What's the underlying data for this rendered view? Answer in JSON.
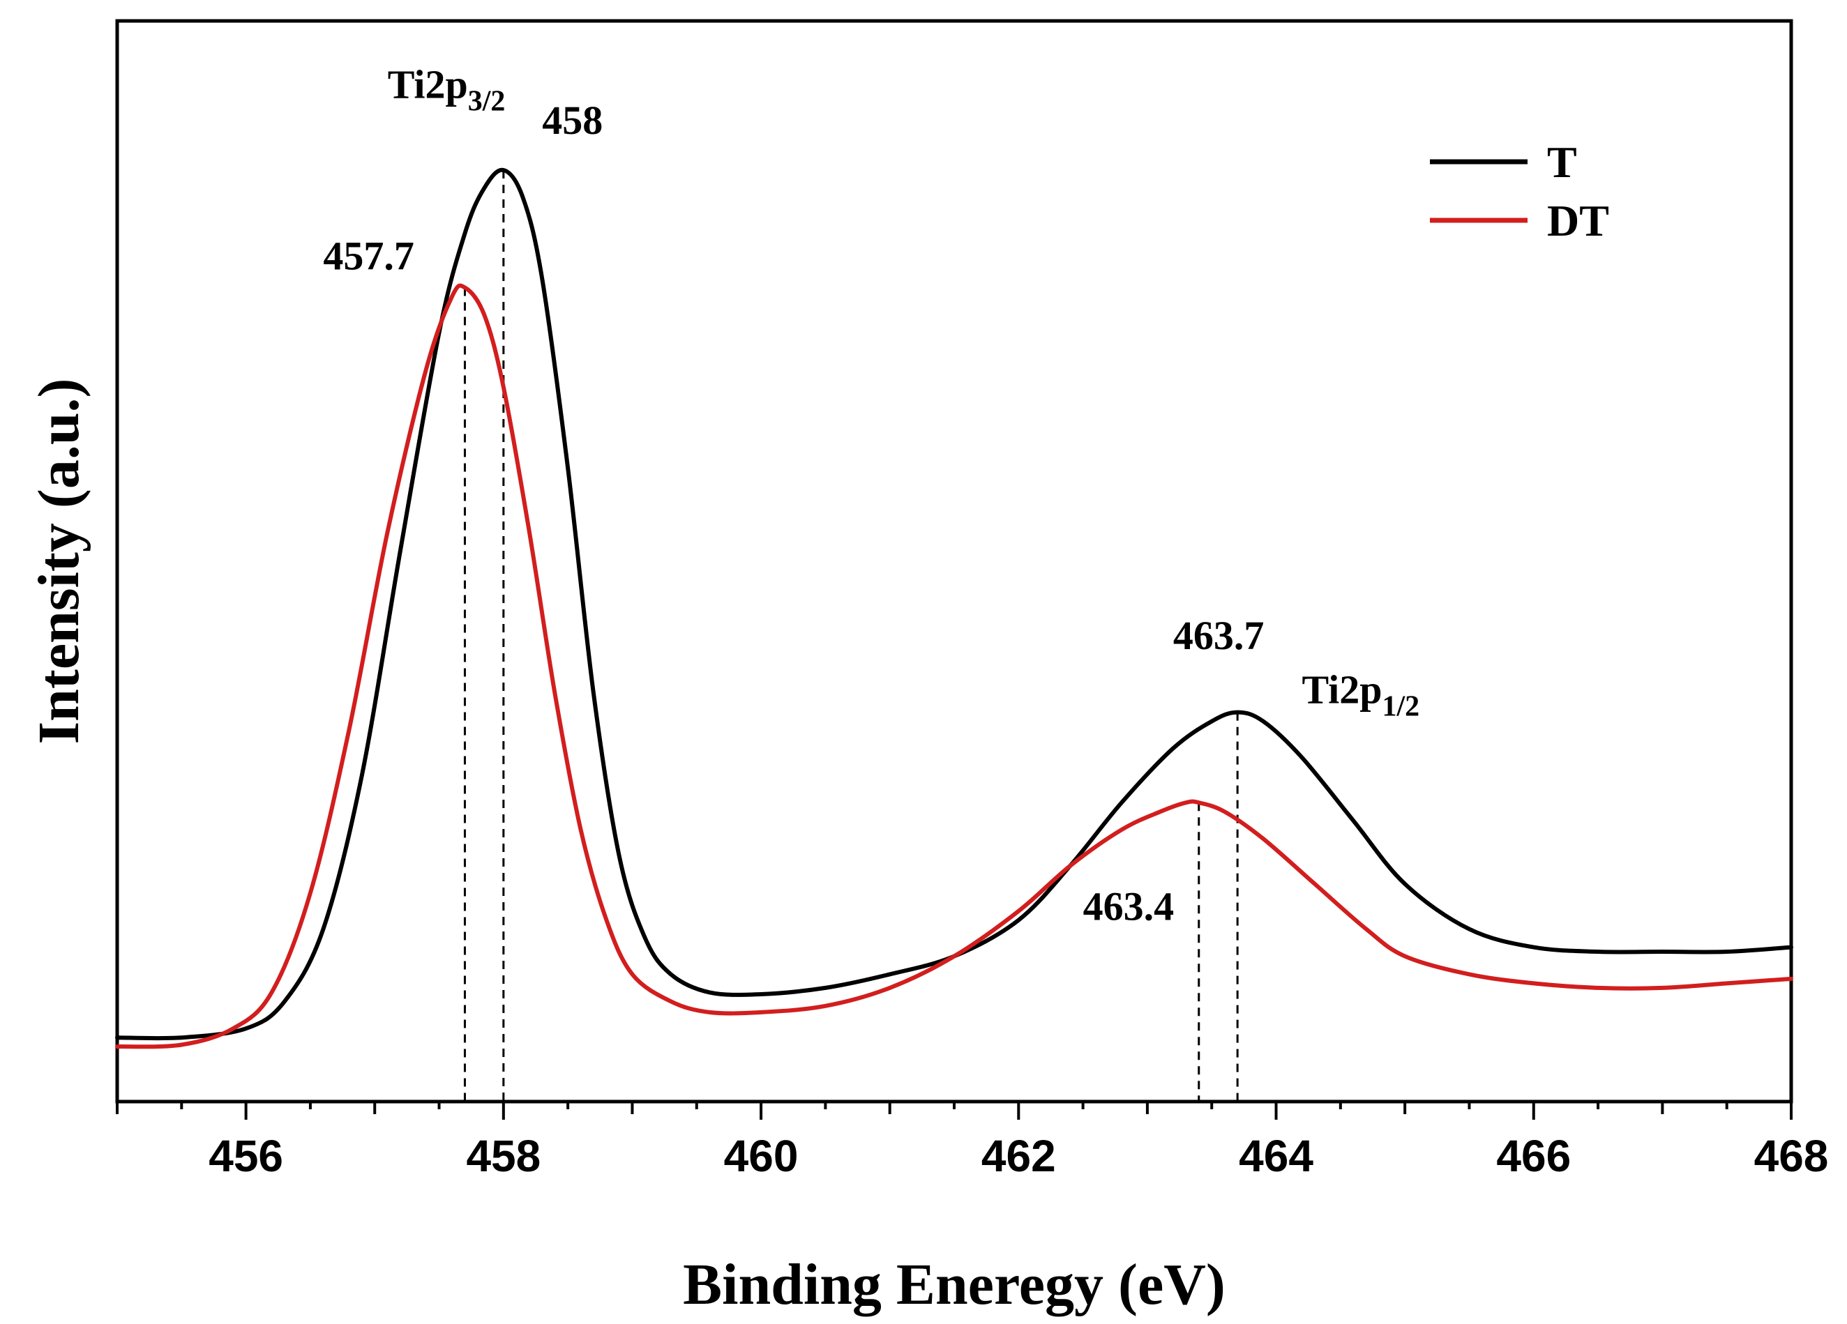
{
  "chart_data": {
    "type": "line",
    "title": "",
    "xlabel": "Binding Eneregy (eV)",
    "ylabel": "Intensity (a.u.)",
    "xlim": [
      455,
      468
    ],
    "ylim": [
      0,
      1.05
    ],
    "x_ticks": [
      456,
      458,
      460,
      462,
      464,
      466,
      468
    ],
    "x_tick_labels": [
      "456",
      "458",
      "460",
      "462",
      "464",
      "466",
      "468"
    ],
    "grid": false,
    "legend_position": "top-right",
    "series": [
      {
        "name": "T",
        "color": "#000000",
        "x": [
          455.0,
          455.5,
          456.0,
          456.3,
          456.6,
          456.9,
          457.2,
          457.5,
          457.7,
          457.85,
          458.0,
          458.15,
          458.3,
          458.5,
          458.7,
          458.9,
          459.1,
          459.3,
          459.6,
          460.0,
          460.5,
          461.0,
          461.5,
          462.0,
          462.4,
          462.8,
          463.2,
          463.5,
          463.7,
          463.9,
          464.2,
          464.6,
          465.0,
          465.5,
          466.0,
          466.5,
          467.0,
          467.5,
          468.0
        ],
        "y": [
          0.04,
          0.04,
          0.05,
          0.08,
          0.16,
          0.33,
          0.58,
          0.82,
          0.93,
          0.98,
          1.0,
          0.97,
          0.88,
          0.67,
          0.42,
          0.24,
          0.15,
          0.11,
          0.09,
          0.088,
          0.095,
          0.11,
          0.13,
          0.17,
          0.23,
          0.3,
          0.36,
          0.39,
          0.4,
          0.39,
          0.35,
          0.28,
          0.21,
          0.16,
          0.14,
          0.135,
          0.135,
          0.135,
          0.14
        ]
      },
      {
        "name": "DT",
        "color": "#d21e1e",
        "x": [
          455.0,
          455.5,
          455.9,
          456.2,
          456.5,
          456.8,
          457.1,
          457.4,
          457.6,
          457.7,
          457.85,
          458.0,
          458.2,
          458.4,
          458.6,
          458.8,
          459.0,
          459.3,
          459.6,
          460.0,
          460.5,
          461.0,
          461.5,
          462.0,
          462.4,
          462.8,
          463.1,
          463.3,
          463.4,
          463.6,
          463.9,
          464.3,
          464.7,
          465.0,
          465.5,
          466.0,
          466.5,
          467.0,
          467.5,
          468.0
        ],
        "y": [
          0.03,
          0.032,
          0.05,
          0.09,
          0.2,
          0.38,
          0.6,
          0.78,
          0.86,
          0.87,
          0.84,
          0.76,
          0.6,
          0.42,
          0.27,
          0.17,
          0.11,
          0.08,
          0.068,
          0.068,
          0.075,
          0.095,
          0.13,
          0.18,
          0.23,
          0.27,
          0.29,
          0.3,
          0.3,
          0.29,
          0.26,
          0.21,
          0.16,
          0.13,
          0.11,
          0.1,
          0.095,
          0.095,
          0.1,
          0.105
        ]
      }
    ],
    "dashed_markers": [
      {
        "series": "DT",
        "x": 457.7
      },
      {
        "series": "T",
        "x": 458.0
      },
      {
        "series": "DT",
        "x": 463.4
      },
      {
        "series": "T",
        "x": 463.7
      }
    ],
    "annotations": [
      {
        "id": "ti2p32",
        "main": "Ti2p",
        "sub": "3/2",
        "x": 457.1,
        "y": 1.08
      },
      {
        "id": "lbl458",
        "text": "458",
        "x": 458.3,
        "y": 1.04
      },
      {
        "id": "lbl4577",
        "text": "457.7",
        "x": 456.6,
        "y": 0.89
      },
      {
        "id": "lbl4637",
        "text": "463.7",
        "x": 463.2,
        "y": 0.47
      },
      {
        "id": "ti2p12",
        "main": "Ti2p",
        "sub": "1/2",
        "x": 464.2,
        "y": 0.41
      },
      {
        "id": "lbl4634",
        "text": "463.4",
        "x": 462.5,
        "y": 0.17
      }
    ]
  }
}
